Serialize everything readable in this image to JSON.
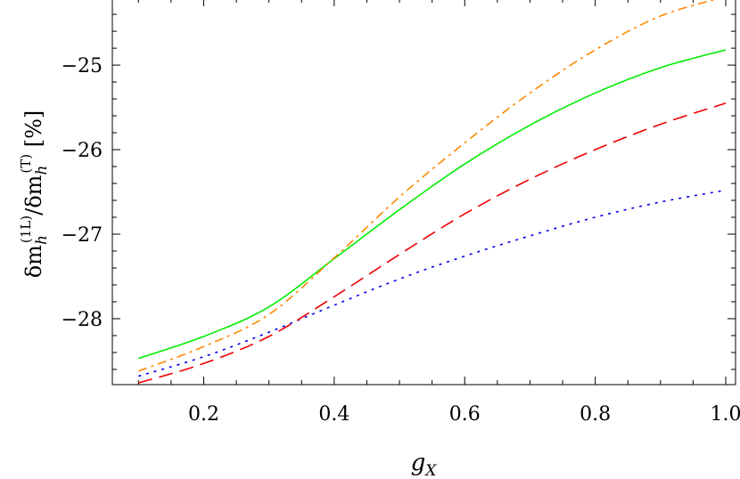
{
  "chart_data": {
    "type": "line",
    "xlabel": "g_X",
    "ylabel": "δm_h^(1L)/δm_h^(T) [%]",
    "xlim": [
      0.06,
      1.015
    ],
    "ylim": [
      -28.78,
      -24.23
    ],
    "xticks": [
      0.2,
      0.4,
      0.6,
      0.8,
      1.0
    ],
    "xtick_labels": [
      "0.2",
      "0.4",
      "0.6",
      "0.8",
      "1.0"
    ],
    "yticks": [
      -28,
      -27,
      -26,
      -25
    ],
    "ytick_labels": [
      "−28",
      "−27",
      "−26",
      "−25"
    ],
    "grid": false,
    "series": [
      {
        "color": "#0000ee",
        "dash": "3,6",
        "x": [
          0.1,
          0.2,
          0.3,
          0.4,
          0.5,
          0.6,
          0.7,
          0.8,
          0.9,
          1.0
        ],
        "y": [
          -28.68,
          -28.45,
          -28.16,
          -27.84,
          -27.53,
          -27.26,
          -27.02,
          -26.8,
          -26.62,
          -26.48
        ]
      },
      {
        "color": "#ee0000",
        "dash": "16,8",
        "x": [
          0.1,
          0.2,
          0.3,
          0.4,
          0.5,
          0.6,
          0.7,
          0.8,
          0.9,
          1.0
        ],
        "y": [
          -28.76,
          -28.53,
          -28.21,
          -27.74,
          -27.24,
          -26.76,
          -26.35,
          -26.0,
          -25.7,
          -25.45
        ]
      },
      {
        "color": "#00ee00",
        "dash": "",
        "x": [
          0.1,
          0.2,
          0.3,
          0.4,
          0.5,
          0.6,
          0.7,
          0.8,
          0.9,
          1.0
        ],
        "y": [
          -28.47,
          -28.21,
          -27.86,
          -27.29,
          -26.71,
          -26.17,
          -25.71,
          -25.33,
          -25.03,
          -24.82
        ]
      },
      {
        "color": "#ff8800",
        "dash": "10,5,3,5",
        "x": [
          0.1,
          0.2,
          0.3,
          0.4,
          0.5,
          0.6,
          0.7,
          0.8,
          0.9,
          1.0
        ],
        "y": [
          -28.62,
          -28.33,
          -27.95,
          -27.28,
          -26.56,
          -25.92,
          -25.33,
          -24.82,
          -24.42,
          -24.19
        ]
      }
    ]
  }
}
